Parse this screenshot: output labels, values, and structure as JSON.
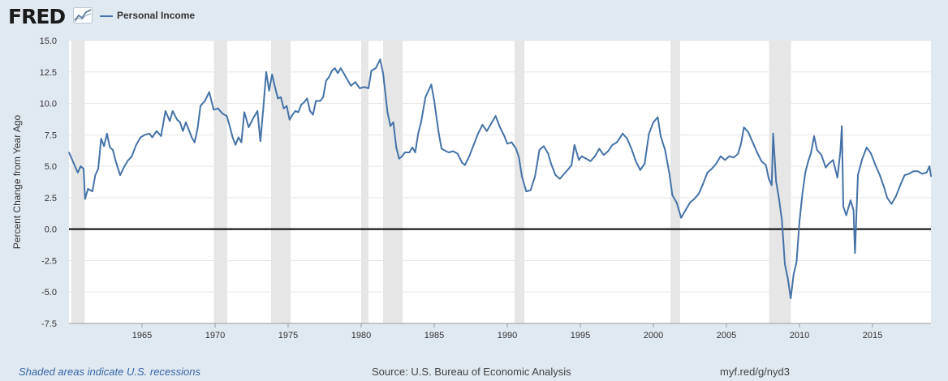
{
  "header": {
    "logo_text": "FRED",
    "logo_icon": "chart-trend-icon",
    "legend_label": "Personal Income",
    "legend_color": "#4572a7"
  },
  "footer": {
    "note": "Shaded areas indicate U.S. recessions",
    "source": "Source: U.S. Bureau of Economic Analysis",
    "link": "myf.red/g/nyd3"
  },
  "chart_data": {
    "type": "line",
    "title": "",
    "xlabel": "",
    "ylabel": "Percent Change from Year Ago",
    "xlim": [
      1960.0,
      2019.0
    ],
    "ylim": [
      -7.5,
      15.0
    ],
    "yticks": [
      {
        "value": 15.0,
        "label": "15.0"
      },
      {
        "value": 12.5,
        "label": "12.5"
      },
      {
        "value": 10.0,
        "label": "10.0"
      },
      {
        "value": 7.5,
        "label": "7.5"
      },
      {
        "value": 5.0,
        "label": "5.0"
      },
      {
        "value": 2.5,
        "label": "2.5"
      },
      {
        "value": 0.0,
        "label": "0.0"
      },
      {
        "value": -2.5,
        "label": "-2.5"
      },
      {
        "value": -5.0,
        "label": "-5.0"
      },
      {
        "value": -7.5,
        "label": "-7.5"
      }
    ],
    "xticks": [
      {
        "value": 1965,
        "label": "1965"
      },
      {
        "value": 1970,
        "label": "1970"
      },
      {
        "value": 1975,
        "label": "1975"
      },
      {
        "value": 1980,
        "label": "1980"
      },
      {
        "value": 1985,
        "label": "1985"
      },
      {
        "value": 1990,
        "label": "1990"
      },
      {
        "value": 1995,
        "label": "1995"
      },
      {
        "value": 2000,
        "label": "2000"
      },
      {
        "value": 2005,
        "label": "2005"
      },
      {
        "value": 2010,
        "label": "2010"
      },
      {
        "value": 2015,
        "label": "2015"
      }
    ],
    "grid": true,
    "zero_line": true,
    "line_color": "#4572a7",
    "recession_color": "#e6e6e6",
    "recessions": [
      [
        1960.17,
        1961.08
      ],
      [
        1969.92,
        1970.83
      ],
      [
        1973.83,
        1975.17
      ],
      [
        1980.0,
        1980.5
      ],
      [
        1981.5,
        1982.83
      ],
      [
        1990.5,
        1991.17
      ],
      [
        2001.17,
        2001.83
      ],
      [
        2007.92,
        2009.42
      ]
    ],
    "series": [
      {
        "color": "#4572a7",
        "points": [
          [
            1960.0,
            6.1
          ],
          [
            1960.3,
            5.3
          ],
          [
            1960.6,
            4.5
          ],
          [
            1960.8,
            5.0
          ],
          [
            1961.0,
            4.8
          ],
          [
            1961.1,
            2.4
          ],
          [
            1961.3,
            3.2
          ],
          [
            1961.6,
            3.0
          ],
          [
            1961.8,
            4.3
          ],
          [
            1962.0,
            4.8
          ],
          [
            1962.2,
            7.2
          ],
          [
            1962.4,
            6.6
          ],
          [
            1962.6,
            7.6
          ],
          [
            1962.8,
            6.5
          ],
          [
            1963.0,
            6.3
          ],
          [
            1963.2,
            5.4
          ],
          [
            1963.5,
            4.3
          ],
          [
            1963.8,
            5.0
          ],
          [
            1964.0,
            5.4
          ],
          [
            1964.3,
            5.8
          ],
          [
            1964.6,
            6.7
          ],
          [
            1964.9,
            7.3
          ],
          [
            1965.2,
            7.5
          ],
          [
            1965.5,
            7.6
          ],
          [
            1965.7,
            7.3
          ],
          [
            1966.0,
            7.8
          ],
          [
            1966.3,
            7.4
          ],
          [
            1966.6,
            9.4
          ],
          [
            1966.9,
            8.6
          ],
          [
            1967.1,
            9.4
          ],
          [
            1967.4,
            8.7
          ],
          [
            1967.6,
            8.5
          ],
          [
            1967.8,
            7.8
          ],
          [
            1968.0,
            8.5
          ],
          [
            1968.2,
            7.9
          ],
          [
            1968.4,
            7.3
          ],
          [
            1968.6,
            6.9
          ],
          [
            1968.8,
            8.0
          ],
          [
            1969.0,
            9.8
          ],
          [
            1969.3,
            10.2
          ],
          [
            1969.6,
            10.9
          ],
          [
            1969.9,
            9.5
          ],
          [
            1970.2,
            9.6
          ],
          [
            1970.5,
            9.2
          ],
          [
            1970.8,
            9.0
          ],
          [
            1971.0,
            8.2
          ],
          [
            1971.2,
            7.3
          ],
          [
            1971.4,
            6.7
          ],
          [
            1971.6,
            7.3
          ],
          [
            1971.8,
            6.9
          ],
          [
            1972.0,
            9.3
          ],
          [
            1972.3,
            8.1
          ],
          [
            1972.6,
            8.8
          ],
          [
            1972.9,
            9.4
          ],
          [
            1973.1,
            7.0
          ],
          [
            1973.3,
            9.6
          ],
          [
            1973.5,
            12.5
          ],
          [
            1973.7,
            11.0
          ],
          [
            1973.9,
            12.3
          ],
          [
            1974.1,
            11.3
          ],
          [
            1974.3,
            10.4
          ],
          [
            1974.5,
            10.5
          ],
          [
            1974.7,
            9.6
          ],
          [
            1974.9,
            9.8
          ],
          [
            1975.1,
            8.7
          ],
          [
            1975.3,
            9.1
          ],
          [
            1975.5,
            9.4
          ],
          [
            1975.7,
            9.3
          ],
          [
            1975.9,
            9.9
          ],
          [
            1976.1,
            10.1
          ],
          [
            1976.3,
            10.4
          ],
          [
            1976.5,
            9.4
          ],
          [
            1976.7,
            9.1
          ],
          [
            1976.9,
            10.2
          ],
          [
            1977.2,
            10.2
          ],
          [
            1977.4,
            10.5
          ],
          [
            1977.6,
            11.8
          ],
          [
            1977.8,
            12.1
          ],
          [
            1978.0,
            12.6
          ],
          [
            1978.2,
            12.8
          ],
          [
            1978.4,
            12.4
          ],
          [
            1978.6,
            12.8
          ],
          [
            1978.9,
            12.2
          ],
          [
            1979.1,
            11.8
          ],
          [
            1979.3,
            11.4
          ],
          [
            1979.6,
            11.7
          ],
          [
            1979.9,
            11.2
          ],
          [
            1980.2,
            11.3
          ],
          [
            1980.5,
            11.2
          ],
          [
            1980.7,
            12.6
          ],
          [
            1981.0,
            12.8
          ],
          [
            1981.3,
            13.5
          ],
          [
            1981.5,
            12.4
          ],
          [
            1981.8,
            9.3
          ],
          [
            1982.0,
            8.2
          ],
          [
            1982.2,
            8.5
          ],
          [
            1982.4,
            6.5
          ],
          [
            1982.6,
            5.6
          ],
          [
            1982.8,
            5.8
          ],
          [
            1983.0,
            6.1
          ],
          [
            1983.3,
            6.1
          ],
          [
            1983.5,
            6.5
          ],
          [
            1983.7,
            6.1
          ],
          [
            1983.9,
            7.6
          ],
          [
            1984.1,
            8.5
          ],
          [
            1984.4,
            10.5
          ],
          [
            1984.6,
            11.0
          ],
          [
            1984.8,
            11.5
          ],
          [
            1985.0,
            10.2
          ],
          [
            1985.3,
            7.7
          ],
          [
            1985.5,
            6.4
          ],
          [
            1985.8,
            6.2
          ],
          [
            1986.0,
            6.1
          ],
          [
            1986.3,
            6.2
          ],
          [
            1986.6,
            6.0
          ],
          [
            1986.9,
            5.3
          ],
          [
            1987.1,
            5.1
          ],
          [
            1987.4,
            5.8
          ],
          [
            1987.7,
            6.7
          ],
          [
            1988.0,
            7.6
          ],
          [
            1988.3,
            8.3
          ],
          [
            1988.6,
            7.8
          ],
          [
            1988.9,
            8.4
          ],
          [
            1989.2,
            9.0
          ],
          [
            1989.5,
            8.1
          ],
          [
            1989.8,
            7.4
          ],
          [
            1990.0,
            6.8
          ],
          [
            1990.3,
            6.9
          ],
          [
            1990.6,
            6.4
          ],
          [
            1990.8,
            5.7
          ],
          [
            1991.0,
            4.2
          ],
          [
            1991.3,
            3.0
          ],
          [
            1991.6,
            3.1
          ],
          [
            1991.9,
            4.2
          ],
          [
            1992.2,
            6.3
          ],
          [
            1992.5,
            6.6
          ],
          [
            1992.8,
            6.0
          ],
          [
            1993.0,
            5.2
          ],
          [
            1993.3,
            4.3
          ],
          [
            1993.6,
            4.0
          ],
          [
            1993.9,
            4.4
          ],
          [
            1994.2,
            4.8
          ],
          [
            1994.4,
            5.1
          ],
          [
            1994.6,
            6.7
          ],
          [
            1994.9,
            5.5
          ],
          [
            1995.1,
            5.8
          ],
          [
            1995.4,
            5.6
          ],
          [
            1995.7,
            5.4
          ],
          [
            1996.0,
            5.8
          ],
          [
            1996.3,
            6.4
          ],
          [
            1996.6,
            5.9
          ],
          [
            1996.9,
            6.2
          ],
          [
            1997.2,
            6.7
          ],
          [
            1997.5,
            6.9
          ],
          [
            1997.9,
            7.6
          ],
          [
            1998.2,
            7.2
          ],
          [
            1998.5,
            6.4
          ],
          [
            1998.8,
            5.4
          ],
          [
            1999.1,
            4.7
          ],
          [
            1999.4,
            5.2
          ],
          [
            1999.7,
            7.6
          ],
          [
            2000.0,
            8.5
          ],
          [
            2000.3,
            8.9
          ],
          [
            2000.5,
            7.4
          ],
          [
            2000.8,
            6.3
          ],
          [
            2001.1,
            4.4
          ],
          [
            2001.3,
            2.7
          ],
          [
            2001.6,
            2.1
          ],
          [
            2001.9,
            0.9
          ],
          [
            2002.2,
            1.5
          ],
          [
            2002.5,
            2.1
          ],
          [
            2002.8,
            2.4
          ],
          [
            2003.1,
            2.8
          ],
          [
            2003.4,
            3.6
          ],
          [
            2003.7,
            4.5
          ],
          [
            2004.0,
            4.8
          ],
          [
            2004.3,
            5.2
          ],
          [
            2004.6,
            5.8
          ],
          [
            2004.9,
            5.5
          ],
          [
            2005.2,
            5.8
          ],
          [
            2005.5,
            5.7
          ],
          [
            2005.8,
            6.0
          ],
          [
            2006.0,
            6.8
          ],
          [
            2006.2,
            8.1
          ],
          [
            2006.5,
            7.7
          ],
          [
            2006.8,
            6.9
          ],
          [
            2007.1,
            6.1
          ],
          [
            2007.4,
            5.4
          ],
          [
            2007.7,
            5.1
          ],
          [
            2007.9,
            4.0
          ],
          [
            2008.1,
            3.5
          ],
          [
            2008.2,
            7.6
          ],
          [
            2008.4,
            3.8
          ],
          [
            2008.6,
            2.4
          ],
          [
            2008.8,
            0.7
          ],
          [
            2009.0,
            -2.8
          ],
          [
            2009.2,
            -3.9
          ],
          [
            2009.4,
            -5.5
          ],
          [
            2009.6,
            -3.6
          ],
          [
            2009.8,
            -2.6
          ],
          [
            2010.0,
            0.6
          ],
          [
            2010.2,
            2.8
          ],
          [
            2010.4,
            4.5
          ],
          [
            2010.6,
            5.4
          ],
          [
            2010.8,
            6.1
          ],
          [
            2011.0,
            7.4
          ],
          [
            2011.2,
            6.3
          ],
          [
            2011.5,
            5.9
          ],
          [
            2011.8,
            4.9
          ],
          [
            2012.0,
            5.2
          ],
          [
            2012.3,
            5.5
          ],
          [
            2012.6,
            4.1
          ],
          [
            2012.8,
            6.2
          ],
          [
            2012.9,
            8.2
          ],
          [
            2013.0,
            1.8
          ],
          [
            2013.2,
            1.1
          ],
          [
            2013.5,
            2.3
          ],
          [
            2013.7,
            1.5
          ],
          [
            2013.8,
            -1.9
          ],
          [
            2014.0,
            4.3
          ],
          [
            2014.3,
            5.6
          ],
          [
            2014.6,
            6.5
          ],
          [
            2014.9,
            6.0
          ],
          [
            2015.2,
            5.1
          ],
          [
            2015.5,
            4.3
          ],
          [
            2015.8,
            3.3
          ],
          [
            2016.0,
            2.5
          ],
          [
            2016.3,
            2.0
          ],
          [
            2016.6,
            2.6
          ],
          [
            2016.9,
            3.5
          ],
          [
            2017.2,
            4.3
          ],
          [
            2017.5,
            4.4
          ],
          [
            2017.8,
            4.6
          ],
          [
            2018.1,
            4.6
          ],
          [
            2018.4,
            4.4
          ],
          [
            2018.7,
            4.5
          ],
          [
            2018.9,
            5.0
          ],
          [
            2019.0,
            4.2
          ]
        ]
      }
    ]
  }
}
